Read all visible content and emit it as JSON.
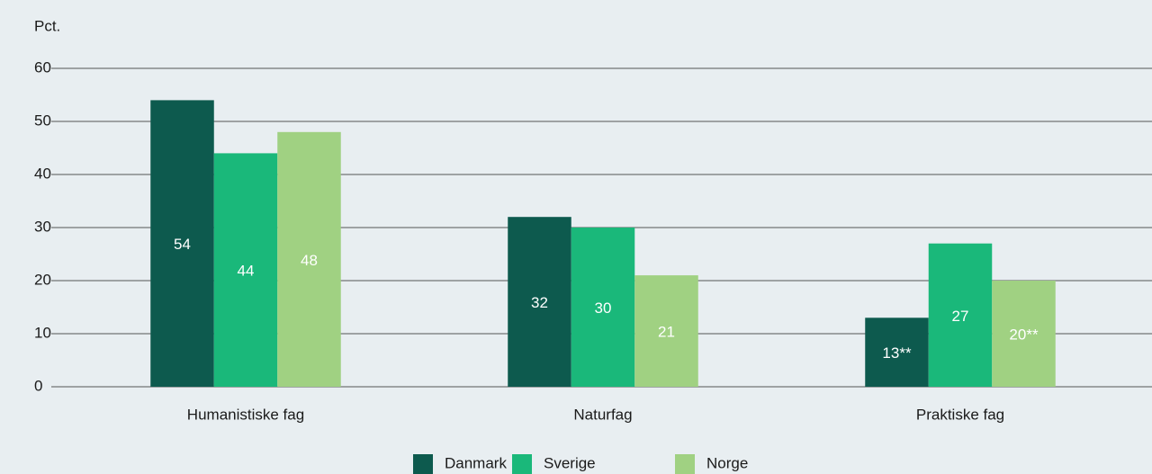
{
  "chart_data": {
    "type": "bar",
    "y_axis_label": "Pct.",
    "categories": [
      "Humanistiske fag",
      "Naturfag",
      "Praktiske fag"
    ],
    "series": [
      {
        "name": "Danmark",
        "color": "#0d5a4e",
        "values": [
          54,
          32,
          13
        ],
        "value_labels": [
          "54",
          "32",
          "13**"
        ]
      },
      {
        "name": "Sverige",
        "color": "#1ab87a",
        "values": [
          44,
          30,
          27
        ]
      },
      {
        "name": "Norge",
        "color": "#a0d182",
        "values": [
          48,
          21,
          20
        ],
        "value_labels": [
          "48",
          "21",
          "20**"
        ]
      }
    ],
    "ylim": [
      0,
      60
    ],
    "yticks": [
      0,
      10,
      20,
      30,
      40,
      50,
      60
    ],
    "grid": true,
    "legend": "bottom"
  }
}
